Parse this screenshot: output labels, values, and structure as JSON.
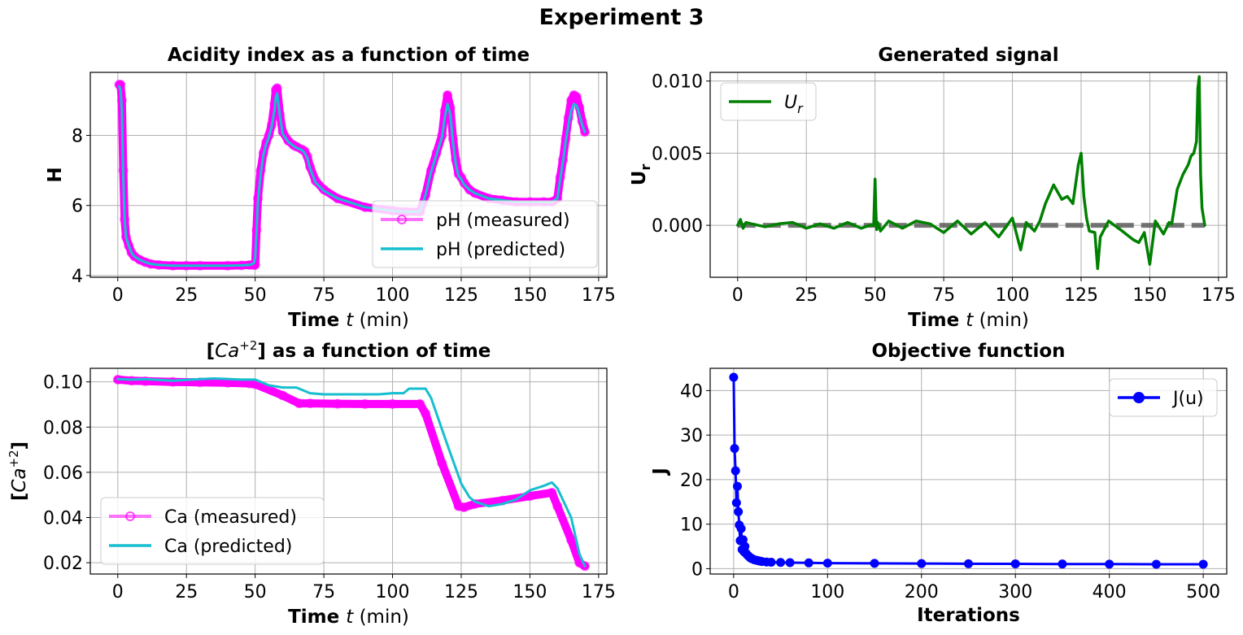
{
  "suptitle": "Experiment 3",
  "chart_data": [
    {
      "id": "ph",
      "type": "line",
      "title": "Acidity index as a function of time",
      "xlabel_bold": "Time",
      "xlabel_rest": "t (min)",
      "ylabel": "H",
      "xlim": [
        -10,
        178
      ],
      "ylim": [
        3.95,
        9.8
      ],
      "xticks": [
        0,
        25,
        50,
        75,
        100,
        125,
        150,
        175
      ],
      "yticks": [
        4,
        6,
        8
      ],
      "grid": true,
      "legend_loc": "lower-right",
      "series": [
        {
          "name": "pH (measured)",
          "color": "#ff00ff",
          "marker": "circle",
          "x": [
            0.5,
            1,
            1.5,
            2,
            2.5,
            3,
            4,
            5,
            6,
            8,
            10,
            12,
            15,
            20,
            25,
            30,
            40,
            45,
            48,
            49.5,
            50,
            50.5,
            51,
            52,
            53,
            54,
            55,
            56,
            57,
            57.5,
            58,
            59,
            60,
            62,
            64,
            65,
            67,
            68,
            69,
            70,
            72,
            75,
            80,
            90,
            100,
            105,
            110,
            112,
            114,
            116,
            118,
            119,
            120,
            121,
            122,
            123,
            124,
            125,
            126,
            128,
            130,
            135,
            140,
            145,
            150,
            155,
            158,
            160,
            161,
            162,
            163,
            164,
            165,
            166,
            167,
            168,
            169,
            170
          ],
          "y": [
            9.45,
            9.45,
            9.0,
            7.0,
            5.6,
            5.1,
            4.85,
            4.65,
            4.55,
            4.45,
            4.38,
            4.33,
            4.3,
            4.28,
            4.28,
            4.28,
            4.28,
            4.29,
            4.3,
            4.3,
            4.3,
            5.3,
            6.2,
            7.0,
            7.5,
            7.8,
            8.0,
            8.3,
            8.9,
            9.3,
            9.35,
            8.6,
            8.1,
            7.85,
            7.72,
            7.68,
            7.6,
            7.55,
            7.4,
            7.1,
            6.7,
            6.45,
            6.2,
            5.95,
            5.85,
            5.82,
            5.82,
            6.3,
            7.0,
            7.5,
            8.0,
            8.7,
            9.15,
            8.8,
            7.9,
            7.3,
            6.9,
            6.8,
            6.65,
            6.45,
            6.35,
            6.2,
            6.15,
            6.1,
            6.1,
            6.1,
            6.1,
            6.2,
            6.8,
            7.3,
            7.9,
            8.5,
            9.0,
            9.15,
            9.1,
            8.8,
            8.4,
            8.1
          ]
        },
        {
          "name": "pH (predicted)",
          "color": "#17becf",
          "marker": "none",
          "x": [
            0.5,
            1,
            1.5,
            2,
            2.5,
            3,
            4,
            5,
            6,
            8,
            10,
            12,
            15,
            20,
            25,
            30,
            40,
            45,
            48,
            49.5,
            50,
            50.5,
            51,
            52,
            53,
            54,
            55,
            56,
            57,
            57.5,
            58,
            59,
            60,
            62,
            64,
            65,
            67,
            68,
            69,
            70,
            72,
            75,
            80,
            90,
            100,
            105,
            110,
            112,
            114,
            116,
            118,
            119,
            120,
            121,
            122,
            123,
            124,
            125,
            126,
            128,
            130,
            135,
            140,
            145,
            150,
            155,
            158,
            160,
            161,
            162,
            163,
            164,
            165,
            166,
            167,
            168,
            169,
            170
          ],
          "y": [
            9.4,
            9.3,
            8.7,
            6.8,
            5.6,
            5.1,
            4.85,
            4.65,
            4.55,
            4.45,
            4.38,
            4.33,
            4.3,
            4.28,
            4.28,
            4.28,
            4.28,
            4.29,
            4.3,
            4.35,
            4.5,
            5.2,
            6.1,
            6.9,
            7.45,
            7.75,
            7.95,
            8.25,
            8.7,
            9.1,
            9.2,
            8.55,
            8.05,
            7.82,
            7.7,
            7.65,
            7.58,
            7.5,
            7.35,
            7.05,
            6.65,
            6.42,
            6.2,
            5.95,
            5.85,
            5.82,
            5.82,
            6.3,
            6.95,
            7.45,
            7.95,
            8.5,
            8.9,
            8.6,
            7.8,
            7.2,
            6.85,
            6.75,
            6.6,
            6.45,
            6.35,
            6.2,
            6.15,
            6.1,
            6.1,
            6.1,
            6.1,
            6.2,
            6.75,
            7.25,
            7.8,
            8.3,
            8.7,
            8.9,
            8.85,
            8.6,
            8.3,
            8.1
          ]
        }
      ]
    },
    {
      "id": "ur",
      "type": "line",
      "title": "Generated signal",
      "xlabel_bold": "Time",
      "xlabel_rest": "t (min)",
      "ylabel": "U",
      "ylabel_sub": "r",
      "xlim": [
        -10,
        178
      ],
      "ylim": [
        -0.0036,
        0.0106
      ],
      "xticks": [
        0,
        25,
        50,
        75,
        100,
        125,
        150,
        175
      ],
      "yticks": [
        0.0,
        0.005,
        0.01
      ],
      "ytick_labels": [
        "0.000",
        "0.005",
        "0.010"
      ],
      "grid": true,
      "legend_loc": "upper-left",
      "reference_line": {
        "y": 0,
        "color": "#555555",
        "style": "dashed"
      },
      "series": [
        {
          "name": "U",
          "name_sub": "r",
          "color": "#008000",
          "marker": "none",
          "x": [
            0,
            1,
            2,
            3,
            5,
            10,
            15,
            20,
            25,
            30,
            35,
            40,
            45,
            48,
            49.5,
            50,
            50.3,
            50.6,
            51,
            52,
            55,
            60,
            65,
            70,
            75,
            80,
            85,
            90,
            95,
            100,
            103,
            105,
            108,
            110,
            112,
            115,
            118,
            120,
            122,
            124,
            125,
            126,
            127,
            128,
            130,
            131,
            132,
            135,
            140,
            144,
            146,
            148,
            150,
            152,
            155,
            157,
            158,
            160,
            162,
            164,
            165,
            166,
            167,
            167.5,
            168,
            168.5,
            169,
            170
          ],
          "y": [
            0.0,
            0.0004,
            -0.0002,
            0.0002,
            0.0001,
            -0.0001,
            0.0001,
            0.0002,
            -0.0002,
            0.0001,
            -0.0002,
            0.0002,
            -0.0002,
            0.0,
            0.0,
            0.0032,
            0.001,
            -0.0003,
            0.0002,
            -0.0004,
            0.0003,
            -0.0002,
            0.0003,
            0.0001,
            -0.0005,
            0.0003,
            -0.0006,
            0.0002,
            -0.0008,
            0.0005,
            -0.0017,
            0.0002,
            -0.0004,
            0.0003,
            0.0015,
            0.0028,
            0.0018,
            0.002,
            0.0015,
            0.0042,
            0.005,
            0.002,
            0.0005,
            -0.0004,
            -0.0005,
            -0.003,
            -0.0008,
            0.0003,
            -0.0004,
            -0.001,
            -0.0012,
            -0.0005,
            -0.0027,
            0.0003,
            -0.0006,
            0.0002,
            0.0001,
            0.0025,
            0.0035,
            0.0042,
            0.0048,
            0.005,
            0.0058,
            0.0095,
            0.0103,
            0.0035,
            0.0012,
            0.0
          ]
        }
      ]
    },
    {
      "id": "ca",
      "type": "line",
      "title_pre": "[",
      "title_ca": "Ca",
      "title_sup": "+2",
      "title_post": "] as a function of time",
      "xlabel_bold": "Time",
      "xlabel_rest": "t (min)",
      "ylabel": "[Ca+2]",
      "xlim": [
        -10,
        178
      ],
      "ylim": [
        0.015,
        0.106
      ],
      "xticks": [
        0,
        25,
        50,
        75,
        100,
        125,
        150,
        175
      ],
      "yticks": [
        0.02,
        0.04,
        0.06,
        0.08,
        0.1
      ],
      "ytick_labels": [
        "0.02",
        "0.04",
        "0.06",
        "0.08",
        "0.10"
      ],
      "grid": true,
      "legend_loc": "lower-left",
      "series": [
        {
          "name": "Ca (measured)",
          "color": "#ff00ff",
          "marker": "circle",
          "x": [
            0,
            5,
            10,
            20,
            30,
            40,
            48,
            50,
            60,
            66,
            70,
            80,
            90,
            100,
            110,
            112,
            118,
            124,
            126,
            130,
            140,
            150,
            158,
            160,
            165,
            168,
            170
          ],
          "y": [
            0.101,
            0.1005,
            0.1003,
            0.1,
            0.0998,
            0.0996,
            0.0993,
            0.099,
            0.094,
            0.0905,
            0.0905,
            0.0903,
            0.0902,
            0.0902,
            0.0902,
            0.086,
            0.064,
            0.045,
            0.0445,
            0.046,
            0.0475,
            0.0495,
            0.051,
            0.045,
            0.03,
            0.02,
            0.0185
          ]
        },
        {
          "name": "Ca (predicted)",
          "color": "#17becf",
          "marker": "none",
          "x": [
            0,
            5,
            10,
            20,
            30,
            35,
            40,
            45,
            48,
            50,
            55,
            60,
            65,
            70,
            75,
            80,
            90,
            95,
            100,
            104,
            106,
            110,
            112,
            114,
            120,
            125,
            128,
            130,
            135,
            140,
            145,
            150,
            155,
            158,
            160,
            165,
            168,
            170
          ],
          "y": [
            0.1012,
            0.101,
            0.1012,
            0.1005,
            0.1012,
            0.1015,
            0.1013,
            0.101,
            0.101,
            0.101,
            0.0985,
            0.0975,
            0.0975,
            0.095,
            0.0945,
            0.0945,
            0.0945,
            0.0945,
            0.095,
            0.095,
            0.097,
            0.097,
            0.097,
            0.093,
            0.072,
            0.055,
            0.049,
            0.047,
            0.045,
            0.046,
            0.048,
            0.052,
            0.054,
            0.0555,
            0.053,
            0.04,
            0.024,
            0.0185
          ]
        }
      ]
    },
    {
      "id": "j",
      "type": "line",
      "title": "Objective function",
      "xlabel": "Iterations",
      "ylabel": "J",
      "xlim": [
        -25,
        525
      ],
      "ylim": [
        -1.2,
        45
      ],
      "xticks": [
        0,
        100,
        200,
        300,
        400,
        500
      ],
      "yticks": [
        0,
        10,
        20,
        30,
        40
      ],
      "grid": true,
      "legend_loc": "upper-right",
      "series": [
        {
          "name": "J(u)",
          "color": "#0000ff",
          "marker": "circle",
          "x": [
            0,
            1,
            2,
            3,
            4,
            5,
            6,
            7,
            8,
            9,
            10,
            11,
            12,
            13,
            14,
            15,
            16,
            17,
            18,
            19,
            20,
            22,
            24,
            26,
            28,
            30,
            35,
            40,
            50,
            60,
            80,
            100,
            150,
            200,
            250,
            300,
            350,
            400,
            450,
            500
          ],
          "y": [
            43.0,
            27.0,
            22.0,
            14.8,
            18.5,
            12.8,
            9.8,
            6.3,
            9.0,
            4.3,
            6.5,
            3.8,
            5.0,
            3.5,
            3.2,
            3.0,
            2.8,
            2.6,
            2.4,
            2.3,
            2.2,
            2.0,
            1.9,
            1.8,
            1.7,
            1.6,
            1.5,
            1.45,
            1.4,
            1.35,
            1.3,
            1.25,
            1.2,
            1.15,
            1.1,
            1.08,
            1.05,
            1.02,
            1.0,
            1.0
          ]
        }
      ]
    }
  ]
}
